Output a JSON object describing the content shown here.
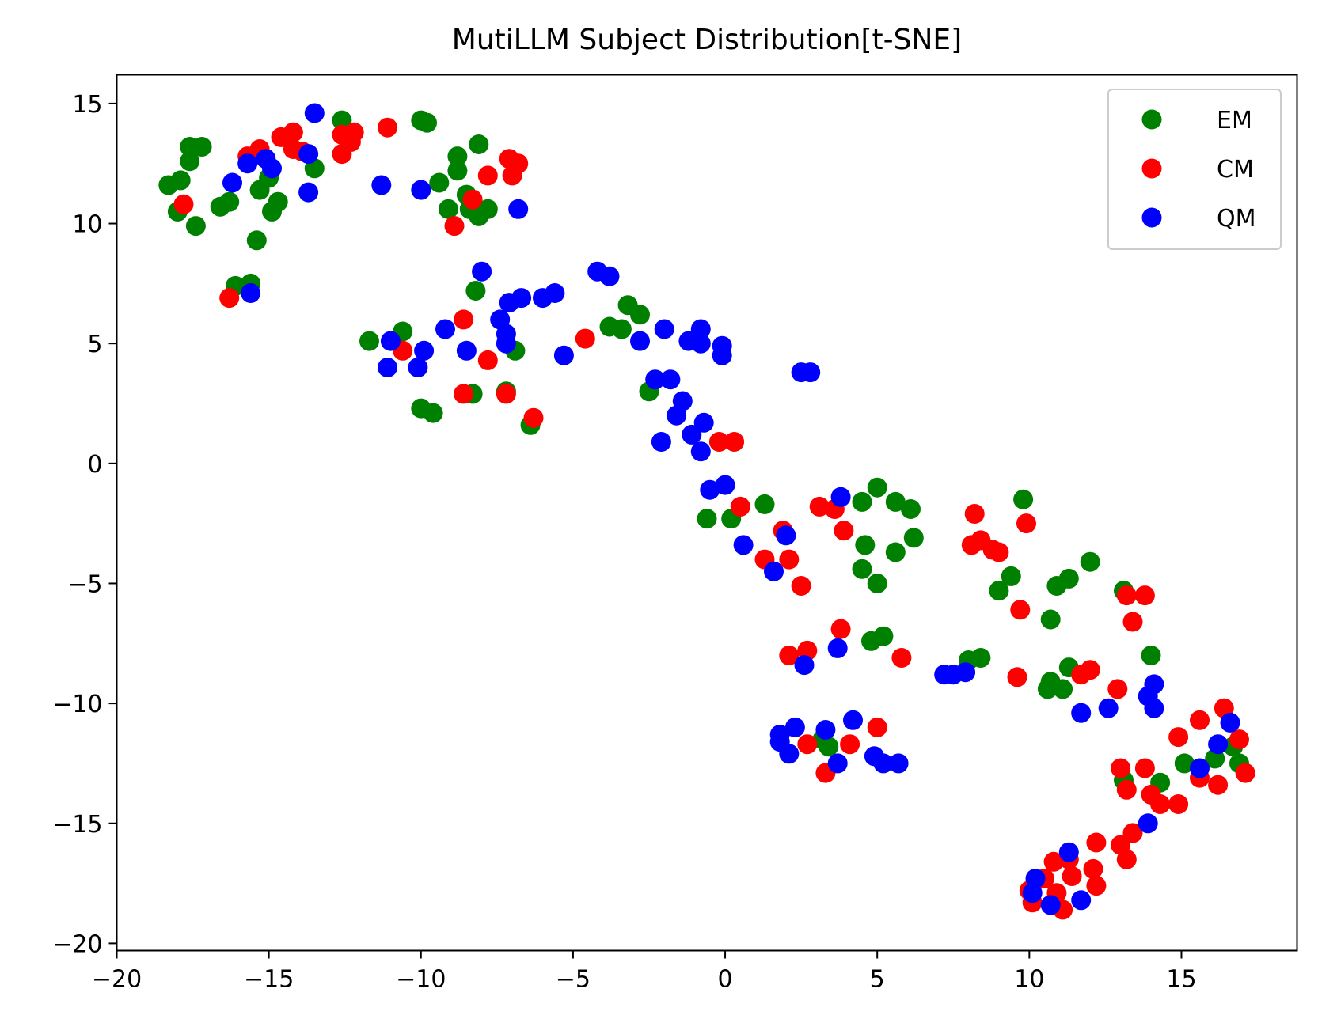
{
  "chart_data": {
    "type": "scatter",
    "title": "MutiLLM Subject Distribution[t-SNE]",
    "xlabel": "",
    "ylabel": "",
    "xlim": [
      -20,
      18.8
    ],
    "ylim": [
      -20.3,
      16.2
    ],
    "xticks": [
      -20,
      -15,
      -10,
      -5,
      0,
      5,
      10,
      15
    ],
    "yticks": [
      15,
      10,
      5,
      0,
      -5,
      -10,
      -15,
      -20
    ],
    "xtick_labels": [
      "−20",
      "−15",
      "−10",
      "−5",
      "0",
      "5",
      "10",
      "15"
    ],
    "ytick_labels": [
      "15",
      "10",
      "5",
      "0",
      "−5",
      "−10",
      "−15",
      "−20"
    ],
    "grid": false,
    "legend_position": "top-right",
    "series": [
      {
        "name": "EM",
        "color": "#008000",
        "points": [
          [
            -18.3,
            11.6
          ],
          [
            -17.9,
            11.8
          ],
          [
            -18.0,
            10.5
          ],
          [
            -17.6,
            13.2
          ],
          [
            -17.6,
            12.6
          ],
          [
            -17.2,
            13.2
          ],
          [
            -17.4,
            9.9
          ],
          [
            -16.6,
            10.7
          ],
          [
            -16.3,
            10.9
          ],
          [
            -16.1,
            7.4
          ],
          [
            -15.6,
            7.5
          ],
          [
            -15.4,
            9.3
          ],
          [
            -15.3,
            11.4
          ],
          [
            -15.0,
            11.9
          ],
          [
            -14.9,
            10.5
          ],
          [
            -14.7,
            10.9
          ],
          [
            -13.5,
            12.3
          ],
          [
            -12.6,
            14.3
          ],
          [
            -10.0,
            14.3
          ],
          [
            -9.8,
            14.2
          ],
          [
            -9.4,
            11.7
          ],
          [
            -9.1,
            10.6
          ],
          [
            -8.8,
            12.8
          ],
          [
            -8.8,
            12.2
          ],
          [
            -8.5,
            11.2
          ],
          [
            -8.4,
            10.6
          ],
          [
            -8.1,
            13.3
          ],
          [
            -8.1,
            10.3
          ],
          [
            -7.8,
            10.6
          ],
          [
            -8.2,
            7.2
          ],
          [
            -11.7,
            5.1
          ],
          [
            -10.6,
            5.5
          ],
          [
            -10.0,
            2.3
          ],
          [
            -9.6,
            2.1
          ],
          [
            -8.3,
            2.9
          ],
          [
            -7.2,
            3.0
          ],
          [
            -6.9,
            4.7
          ],
          [
            -6.4,
            1.6
          ],
          [
            -3.8,
            5.7
          ],
          [
            -3.4,
            5.6
          ],
          [
            -3.2,
            6.6
          ],
          [
            -2.8,
            6.2
          ],
          [
            -2.5,
            3.0
          ],
          [
            -0.6,
            -2.3
          ],
          [
            0.2,
            -2.3
          ],
          [
            1.3,
            -1.7
          ],
          [
            3.2,
            -11.5
          ],
          [
            3.4,
            -11.8
          ],
          [
            4.5,
            -1.6
          ],
          [
            4.6,
            -3.4
          ],
          [
            4.5,
            -4.4
          ],
          [
            4.8,
            -7.4
          ],
          [
            5.0,
            -1.0
          ],
          [
            5.0,
            -5.0
          ],
          [
            5.2,
            -7.2
          ],
          [
            5.6,
            -1.6
          ],
          [
            5.6,
            -3.7
          ],
          [
            6.1,
            -1.9
          ],
          [
            6.2,
            -3.1
          ],
          [
            8.0,
            -8.2
          ],
          [
            8.4,
            -8.1
          ],
          [
            9.0,
            -5.3
          ],
          [
            9.4,
            -4.7
          ],
          [
            9.8,
            -1.5
          ],
          [
            10.6,
            -9.4
          ],
          [
            10.7,
            -9.1
          ],
          [
            10.7,
            -6.5
          ],
          [
            10.9,
            -5.1
          ],
          [
            11.1,
            -9.4
          ],
          [
            11.3,
            -4.8
          ],
          [
            11.3,
            -8.5
          ],
          [
            12.0,
            -4.1
          ],
          [
            13.1,
            -5.3
          ],
          [
            13.1,
            -13.2
          ],
          [
            14.0,
            -8.0
          ],
          [
            14.3,
            -13.3
          ],
          [
            15.1,
            -12.5
          ],
          [
            16.1,
            -12.3
          ],
          [
            16.7,
            -11.8
          ],
          [
            16.9,
            -12.5
          ]
        ]
      },
      {
        "name": "CM",
        "color": "#ff0000",
        "points": [
          [
            -17.8,
            10.8
          ],
          [
            -16.3,
            6.9
          ],
          [
            -15.7,
            12.8
          ],
          [
            -15.3,
            13.1
          ],
          [
            -14.6,
            13.6
          ],
          [
            -14.2,
            13.8
          ],
          [
            -14.2,
            13.1
          ],
          [
            -13.9,
            13.0
          ],
          [
            -12.6,
            13.7
          ],
          [
            -12.6,
            12.9
          ],
          [
            -12.3,
            13.4
          ],
          [
            -12.2,
            13.8
          ],
          [
            -11.1,
            14.0
          ],
          [
            -8.9,
            9.9
          ],
          [
            -8.3,
            11.0
          ],
          [
            -7.8,
            12.0
          ],
          [
            -7.1,
            12.7
          ],
          [
            -7.0,
            12.0
          ],
          [
            -6.8,
            12.5
          ],
          [
            -10.6,
            4.7
          ],
          [
            -8.6,
            6.0
          ],
          [
            -8.6,
            2.9
          ],
          [
            -7.8,
            4.3
          ],
          [
            -7.2,
            2.9
          ],
          [
            -6.3,
            1.9
          ],
          [
            -4.6,
            5.2
          ],
          [
            -0.2,
            0.9
          ],
          [
            0.3,
            0.9
          ],
          [
            0.5,
            -1.8
          ],
          [
            1.3,
            -4.0
          ],
          [
            1.9,
            -2.8
          ],
          [
            2.1,
            -4.0
          ],
          [
            2.1,
            -8.0
          ],
          [
            2.5,
            -5.1
          ],
          [
            2.7,
            -7.8
          ],
          [
            2.7,
            -11.7
          ],
          [
            3.1,
            -1.8
          ],
          [
            3.6,
            -1.9
          ],
          [
            3.8,
            -6.9
          ],
          [
            3.9,
            -2.8
          ],
          [
            3.3,
            -12.9
          ],
          [
            4.1,
            -11.7
          ],
          [
            5.0,
            -11.0
          ],
          [
            5.8,
            -8.1
          ],
          [
            8.1,
            -3.4
          ],
          [
            8.2,
            -2.1
          ],
          [
            8.4,
            -3.2
          ],
          [
            8.8,
            -3.6
          ],
          [
            9.0,
            -3.7
          ],
          [
            9.6,
            -8.9
          ],
          [
            9.7,
            -6.1
          ],
          [
            9.9,
            -2.5
          ],
          [
            10.0,
            -17.8
          ],
          [
            10.1,
            -18.3
          ],
          [
            10.5,
            -17.3
          ],
          [
            10.8,
            -16.6
          ],
          [
            10.9,
            -17.9
          ],
          [
            11.1,
            -18.6
          ],
          [
            11.3,
            -16.5
          ],
          [
            11.4,
            -17.2
          ],
          [
            11.7,
            -8.8
          ],
          [
            12.0,
            -8.6
          ],
          [
            12.1,
            -16.9
          ],
          [
            12.2,
            -17.6
          ],
          [
            12.2,
            -15.8
          ],
          [
            12.9,
            -9.4
          ],
          [
            13.0,
            -15.9
          ],
          [
            13.0,
            -12.7
          ],
          [
            13.2,
            -13.6
          ],
          [
            13.2,
            -16.5
          ],
          [
            13.2,
            -5.5
          ],
          [
            13.4,
            -6.6
          ],
          [
            13.4,
            -15.4
          ],
          [
            13.8,
            -5.5
          ],
          [
            13.8,
            -12.7
          ],
          [
            14.0,
            -13.8
          ],
          [
            14.3,
            -14.2
          ],
          [
            14.9,
            -11.4
          ],
          [
            14.9,
            -14.2
          ],
          [
            15.6,
            -10.7
          ],
          [
            15.6,
            -13.1
          ],
          [
            16.2,
            -13.4
          ],
          [
            16.4,
            -10.2
          ],
          [
            16.9,
            -11.5
          ],
          [
            17.1,
            -12.9
          ]
        ]
      },
      {
        "name": "QM",
        "color": "#0000ff",
        "points": [
          [
            -16.2,
            11.7
          ],
          [
            -15.6,
            7.1
          ],
          [
            -15.7,
            12.5
          ],
          [
            -15.1,
            12.7
          ],
          [
            -14.9,
            12.3
          ],
          [
            -13.7,
            12.9
          ],
          [
            -13.7,
            11.3
          ],
          [
            -13.5,
            14.6
          ],
          [
            -11.3,
            11.6
          ],
          [
            -10.0,
            11.4
          ],
          [
            -6.8,
            10.6
          ],
          [
            -11.0,
            5.1
          ],
          [
            -11.1,
            4.0
          ],
          [
            -10.1,
            4.0
          ],
          [
            -9.9,
            4.7
          ],
          [
            -9.2,
            5.6
          ],
          [
            -8.5,
            4.7
          ],
          [
            -8.0,
            8.0
          ],
          [
            -7.4,
            6.0
          ],
          [
            -7.2,
            5.4
          ],
          [
            -7.2,
            5.0
          ],
          [
            -7.1,
            6.7
          ],
          [
            -6.7,
            6.9
          ],
          [
            -6.0,
            6.9
          ],
          [
            -5.6,
            7.1
          ],
          [
            -5.3,
            4.5
          ],
          [
            -4.2,
            8.0
          ],
          [
            -3.8,
            7.8
          ],
          [
            -2.8,
            5.1
          ],
          [
            -2.3,
            3.5
          ],
          [
            -2.1,
            0.9
          ],
          [
            -2.0,
            5.6
          ],
          [
            -1.8,
            3.5
          ],
          [
            -1.6,
            2.0
          ],
          [
            -1.4,
            2.6
          ],
          [
            -1.2,
            5.1
          ],
          [
            -1.1,
            1.2
          ],
          [
            -0.8,
            5.0
          ],
          [
            -0.8,
            5.6
          ],
          [
            -0.8,
            0.5
          ],
          [
            -0.7,
            1.7
          ],
          [
            -0.5,
            -1.1
          ],
          [
            -0.1,
            4.9
          ],
          [
            -0.1,
            4.5
          ],
          [
            0.0,
            -0.9
          ],
          [
            0.6,
            -3.4
          ],
          [
            1.6,
            -4.5
          ],
          [
            2.0,
            -3.0
          ],
          [
            1.8,
            -11.3
          ],
          [
            1.8,
            -11.6
          ],
          [
            2.1,
            -12.1
          ],
          [
            2.3,
            -11.0
          ],
          [
            2.6,
            -8.4
          ],
          [
            2.5,
            3.8
          ],
          [
            2.8,
            3.8
          ],
          [
            3.3,
            -11.1
          ],
          [
            3.7,
            -12.5
          ],
          [
            3.7,
            -7.7
          ],
          [
            3.8,
            -1.4
          ],
          [
            4.2,
            -10.7
          ],
          [
            4.9,
            -12.2
          ],
          [
            5.2,
            -12.5
          ],
          [
            5.7,
            -12.5
          ],
          [
            7.2,
            -8.8
          ],
          [
            7.5,
            -8.8
          ],
          [
            7.9,
            -8.7
          ],
          [
            10.1,
            -17.9
          ],
          [
            10.2,
            -17.3
          ],
          [
            10.7,
            -18.4
          ],
          [
            11.3,
            -16.2
          ],
          [
            11.7,
            -10.4
          ],
          [
            11.7,
            -18.2
          ],
          [
            12.6,
            -10.2
          ],
          [
            13.9,
            -15.0
          ],
          [
            13.9,
            -9.7
          ],
          [
            14.1,
            -9.2
          ],
          [
            14.1,
            -10.2
          ],
          [
            15.6,
            -12.7
          ],
          [
            16.2,
            -11.7
          ],
          [
            16.6,
            -10.8
          ]
        ]
      }
    ]
  }
}
